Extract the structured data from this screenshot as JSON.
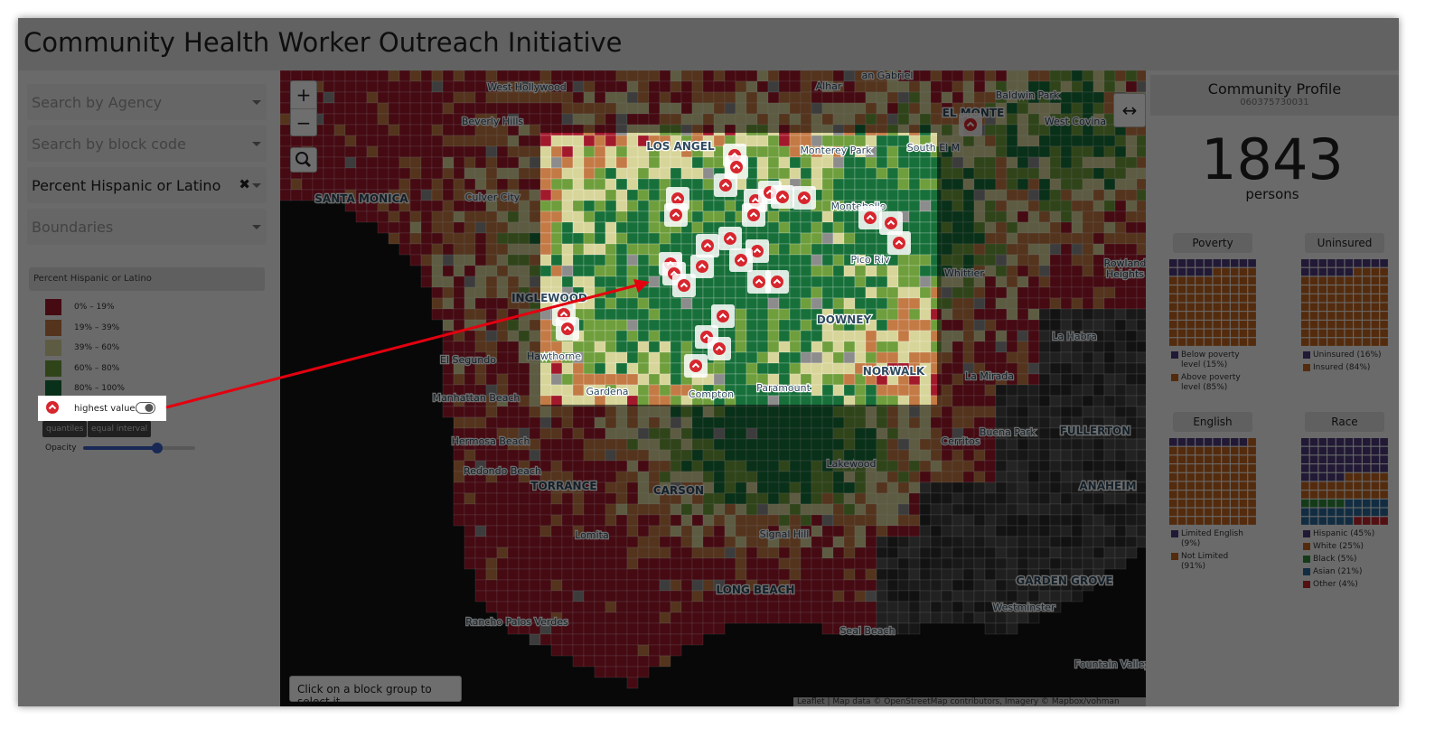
{
  "header": {
    "title": "Community Health Worker Outreach Initiative"
  },
  "sidebar": {
    "dropdowns": [
      "Search by Agency",
      "Search by block code",
      "Percent Hispanic or Latino",
      "Boundaries"
    ],
    "legend": {
      "title": "Percent Hispanic or Latino",
      "items": [
        {
          "label": "0% – 19%",
          "color": "#a3192c"
        },
        {
          "label": "19% – 39%",
          "color": "#c47a45"
        },
        {
          "label": "39% – 60%",
          "color": "#d8d59a"
        },
        {
          "label": "60% – 80%",
          "color": "#6f9e3c"
        },
        {
          "label": "80% – 100%",
          "color": "#17703a"
        }
      ]
    },
    "toggle": "highest values",
    "buttons": [
      "quantiles",
      "equal interval"
    ],
    "opacity": "Opacity"
  },
  "map": {
    "zoom": [
      "+",
      "−"
    ],
    "expand": "↔",
    "status": "Click on a block group to select it",
    "attribution": "Leaflet | Map data © OpenStreetMap contributors, Imagery © Mapbox/vohman",
    "labels": [
      "West Hollywood",
      "Beverly Hills",
      "SANTA MONICA",
      "Culver City",
      "INGLEWOOD",
      "El Segundo",
      "Hawthorne",
      "Manhattan Beach",
      "Hermosa Beach",
      "Redondo Beach",
      "TORRANCE",
      "CARSON",
      "Lomita",
      "Rancho Palos Verdes",
      "LONG BEACH",
      "Signal Hill",
      "Lakewood",
      "Gardena",
      "Compton",
      "Paramount",
      "DOWNEY",
      "NORWALK",
      "LOS ANGEL",
      "Monterey Park",
      "South El M",
      "EL MONTE",
      "Alhar",
      "an Gabriel",
      "Baldwin Park",
      "West Covina",
      "Montebello",
      "Pico Riv",
      "Whittier",
      "Rowland",
      "Heights",
      "La Habra",
      "La Mirada",
      "Buena Park",
      "FULLERTON",
      "ANAHEIM",
      "Cerritos",
      "GARDEN GROVE",
      "Westminster",
      "Seal Beach",
      "Fountain Valley"
    ]
  },
  "profile": {
    "title": "Community Profile",
    "id": "060375730031",
    "count": 1843,
    "unit": "persons",
    "waffles": [
      {
        "title": "Poverty",
        "labels": [
          "Below poverty level (15%)",
          "Above poverty level (85%)"
        ],
        "values": [
          15,
          85
        ],
        "colors": [
          "#4d3a7c",
          "#c2651f"
        ]
      },
      {
        "title": "Uninsured",
        "labels": [
          "Uninsured (16%)",
          "Insured (84%)"
        ],
        "values": [
          16,
          84
        ],
        "colors": [
          "#4d3a7c",
          "#c2651f"
        ]
      },
      {
        "title": "English",
        "labels": [
          "Limited English (9%)",
          "Not Limited (91%)"
        ],
        "values": [
          9,
          91
        ],
        "colors": [
          "#4d3a7c",
          "#c2651f"
        ]
      },
      {
        "title": "Race",
        "labels": [
          "Hispanic (45%)",
          "White (25%)",
          "Black (5%)",
          "Asian (21%)",
          "Other (4%)"
        ],
        "values": [
          45,
          25,
          5,
          21,
          4
        ],
        "colors": [
          "#4d3a7c",
          "#c2651f",
          "#2f8a3a",
          "#2a6a9a",
          "#c0272d"
        ]
      }
    ]
  }
}
